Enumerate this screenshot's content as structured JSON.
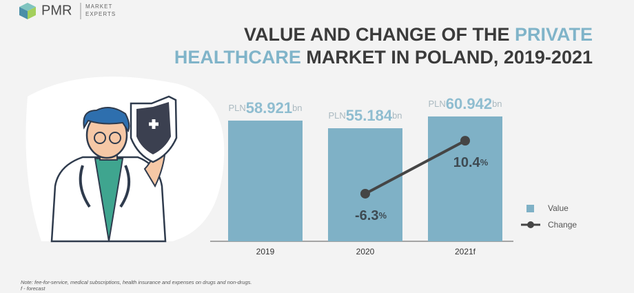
{
  "logo": {
    "name": "PMR",
    "tagline_1": "MARKET",
    "tagline_2": "EXPERTS"
  },
  "chart_data": {
    "type": "bar_line",
    "title_lines": [
      [
        {
          "text": "VALUE AND CHANGE OF THE ",
          "highlight": false
        },
        {
          "text": "PRIVATE",
          "highlight": true
        }
      ],
      [
        {
          "text": "HEALTHCARE",
          "highlight": true
        },
        {
          "text": " MARKET IN POLAND, 2019-2021",
          "highlight": false
        }
      ]
    ],
    "title_color": "#3b3b3b",
    "highlight_color": "#80b4c9",
    "categories": [
      "2019",
      "2020",
      "2021f"
    ],
    "series": [
      {
        "name": "Value",
        "color": "#7fb1c6",
        "values": [
          58.921,
          55.184,
          60.942
        ]
      },
      {
        "name": "Change",
        "color": "#454545",
        "values": [
          null,
          -6.3,
          10.4
        ],
        "axis": "y2"
      }
    ],
    "value_prefix": "PLN",
    "value_suffix": "bn",
    "change_suffix": "%",
    "ylim": [
      0,
      70
    ],
    "y2lim": [
      -21.3,
      23.9
    ],
    "legend": "right",
    "notes": [
      "Note: fee-for-service, medical subscriptions, health insurance and expenses on drugs and non-drugs.",
      "f - forecast"
    ]
  }
}
